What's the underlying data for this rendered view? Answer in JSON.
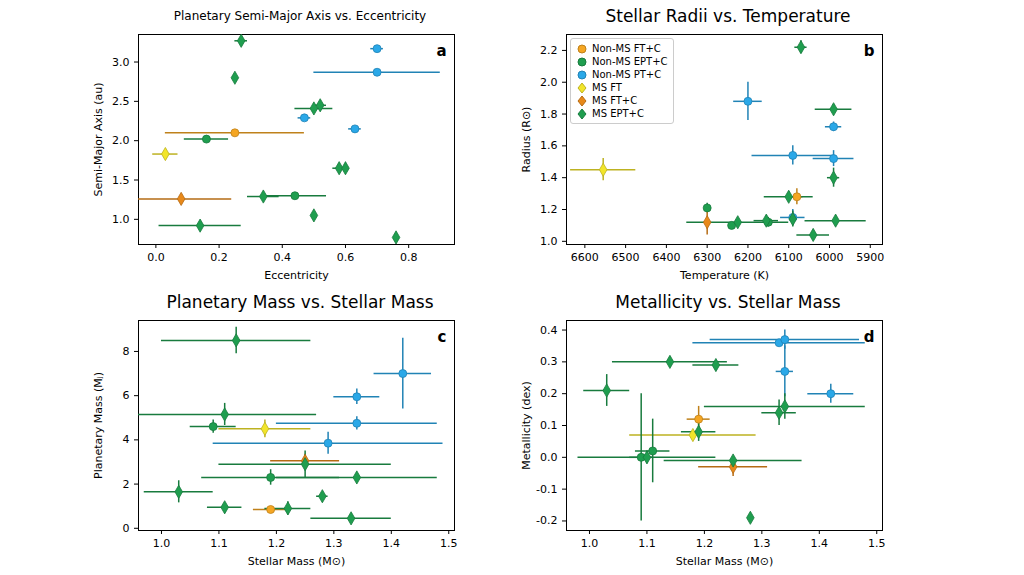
{
  "chart_data": [
    {
      "type": "scatter",
      "title": "Planetary Semi-Major Axis vs. Eccentricity",
      "x_label": "Eccentricity",
      "y_label": "Semi-Major Axis (au)",
      "annotations": [
        "a"
      ],
      "xlim": [
        -0.055,
        0.945
      ],
      "xticks": [
        {
          "value": 0,
          "label": "0.0"
        },
        {
          "value": 0.2,
          "label": "0.2"
        },
        {
          "value": 0.4,
          "label": "0.4"
        },
        {
          "value": 0.6,
          "label": "0.6"
        },
        {
          "value": 0.8,
          "label": "0.8"
        }
      ],
      "ylim": [
        0.68,
        3.35
      ],
      "yticks": [
        {
          "value": 1,
          "label": "1.0"
        },
        {
          "value": 1.5,
          "label": "1.5"
        },
        {
          "value": 2,
          "label": "2.0"
        },
        {
          "value": 2.5,
          "label": "2.5"
        },
        {
          "value": 3,
          "label": "3.0"
        }
      ],
      "series": [
        {
          "name": "Non-MS FT+C",
          "color": "#f5a623",
          "marker": "circle",
          "x": [
            0.25
          ],
          "y": [
            2.1
          ],
          "x_err": [
            0.22
          ],
          "y_err": [
            0
          ]
        },
        {
          "name": "Non-MS EPT+C",
          "color": "#1f9e4f",
          "marker": "circle",
          "x": [
            0.16,
            0.44
          ],
          "y": [
            2.02,
            1.3
          ],
          "x_err": [
            0.07,
            0.1
          ],
          "y_err": [
            0,
            0
          ]
        },
        {
          "name": "Non-MS PT+C",
          "color": "#2aa8e8",
          "marker": "circle",
          "x": [
            0.7,
            0.7,
            0.63,
            0.47
          ],
          "y": [
            3.17,
            2.87,
            2.15,
            2.29
          ],
          "x_err": [
            0.02,
            0.2,
            0.02,
            0.02
          ],
          "y_err": [
            0,
            0,
            0,
            0
          ]
        },
        {
          "name": "MS FT",
          "color": "#f2e52a",
          "marker": "diamond",
          "x": [
            0.03
          ],
          "y": [
            1.83
          ],
          "x_err": [
            0.04
          ],
          "y_err": [
            0
          ]
        },
        {
          "name": "MS FT+C",
          "color": "#e8891a",
          "marker": "diamond",
          "x": [
            0.08
          ],
          "y": [
            1.26
          ],
          "x_err": [
            0.16
          ],
          "y_err": [
            0
          ]
        },
        {
          "name": "MS EPT+C",
          "color": "#1f9e4f",
          "marker": "diamond",
          "x": [
            0.27,
            0.25,
            0.14,
            0.34,
            0.5,
            0.52,
            0.58,
            0.6,
            0.5,
            0.76
          ],
          "y": [
            3.27,
            2.8,
            0.92,
            1.29,
            2.41,
            2.45,
            1.65,
            1.65,
            1.05,
            0.77
          ],
          "x_err": [
            0.02,
            0,
            0.13,
            0.05,
            0.06,
            0.02,
            0.02,
            0,
            0,
            0
          ],
          "y_err": [
            0,
            0,
            0,
            0,
            0,
            0,
            0,
            0,
            0,
            0
          ]
        }
      ]
    },
    {
      "type": "scatter",
      "title": "Stellar Radii vs. Temperature",
      "x_label": "Temperature (K)",
      "y_label": "Radius (R⊙)",
      "annotations": [
        "b"
      ],
      "legend": "upper left",
      "xlim": [
        6645,
        5870
      ],
      "xticks": [
        6600,
        6500,
        6400,
        6300,
        6200,
        6100,
        6000,
        5900
      ],
      "ylim": [
        0.98,
        2.3
      ],
      "yticks": [
        {
          "value": 1,
          "label": "1.0"
        },
        {
          "value": 1.2,
          "label": "1.2"
        },
        {
          "value": 1.4,
          "label": "1.4"
        },
        {
          "value": 1.6,
          "label": "1.6"
        },
        {
          "value": 1.8,
          "label": "1.8"
        },
        {
          "value": 2,
          "label": "2.0"
        },
        {
          "value": 2.2,
          "label": "2.2"
        }
      ],
      "series": [
        {
          "name": "Non-MS FT+C",
          "color": "#f5a623",
          "marker": "circle",
          "x": [
            6080
          ],
          "y": [
            1.28
          ],
          "x_err": [
            15
          ],
          "y_err": [
            0.05
          ]
        },
        {
          "name": "Non-MS EPT+C",
          "color": "#1f9e4f",
          "marker": "circle",
          "x": [
            6300,
            6240,
            6150
          ],
          "y": [
            1.21,
            1.1,
            1.12
          ],
          "x_err": [
            0,
            0,
            0
          ],
          "y_err": [
            0.03,
            0,
            0.03
          ]
        },
        {
          "name": "Non-MS PT+C",
          "color": "#2aa8e8",
          "marker": "circle",
          "x": [
            6200,
            6090,
            5990,
            5990,
            6090
          ],
          "y": [
            1.88,
            1.54,
            1.52,
            1.72,
            1.15
          ],
          "x_err": [
            35,
            100,
            50,
            20,
            30
          ],
          "y_err": [
            0.12,
            0.06,
            0.05,
            0.03,
            0.05
          ]
        },
        {
          "name": "MS FT",
          "color": "#f2e52a",
          "marker": "diamond",
          "x": [
            6555
          ],
          "y": [
            1.45
          ],
          "x_err": [
            80
          ],
          "y_err": [
            0.07
          ]
        },
        {
          "name": "MS FT+C",
          "color": "#e8891a",
          "marker": "diamond",
          "x": [
            6300
          ],
          "y": [
            1.12
          ],
          "x_err": [
            0
          ],
          "y_err": [
            0.08
          ]
        },
        {
          "name": "MS EPT+C",
          "color": "#1f9e4f",
          "marker": "diamond",
          "x": [
            6070,
            5990,
            5990,
            6155,
            6100,
            6090,
            6040,
            5985,
            6225
          ],
          "y": [
            2.22,
            1.83,
            1.4,
            1.13,
            1.28,
            1.14,
            1.04,
            1.13,
            1.12
          ],
          "x_err": [
            15,
            45,
            15,
            30,
            60,
            0,
            40,
            75,
            125
          ],
          "y_err": [
            0.04,
            0.03,
            0.06,
            0.03,
            0.03,
            0.05,
            0,
            0.02,
            0
          ]
        }
      ]
    },
    {
      "type": "scatter",
      "title": "Planetary Mass vs. Stellar Mass",
      "x_label": "Stellar Mass (M⊙)",
      "y_label": "Planetary Mass (Mⱼ)",
      "annotations": [
        "c"
      ],
      "xlim": [
        0.96,
        1.51
      ],
      "xticks": [
        {
          "value": 1,
          "label": "1.0"
        },
        {
          "value": 1.1,
          "label": "1.1"
        },
        {
          "value": 1.2,
          "label": "1.2"
        },
        {
          "value": 1.3,
          "label": "1.3"
        },
        {
          "value": 1.4,
          "label": "1.4"
        },
        {
          "value": 1.5,
          "label": "1.5"
        }
      ],
      "ylim": [
        -0.1,
        9.4
      ],
      "yticks": [
        0,
        2,
        4,
        6,
        8
      ],
      "series": [
        {
          "name": "Non-MS FT+C",
          "color": "#f5a623",
          "marker": "circle",
          "x": [
            1.19
          ],
          "y": [
            0.85
          ],
          "x_err": [
            0.03
          ],
          "y_err": [
            0
          ]
        },
        {
          "name": "Non-MS EPT+C",
          "color": "#1f9e4f",
          "marker": "circle",
          "x": [
            1.09,
            1.19
          ],
          "y": [
            4.6,
            2.3
          ],
          "x_err": [
            0.04,
            0.12
          ],
          "y_err": [
            0.3,
            0.35
          ]
        },
        {
          "name": "Non-MS PT+C",
          "color": "#2aa8e8",
          "marker": "circle",
          "x": [
            1.42,
            1.34,
            1.34,
            1.29
          ],
          "y": [
            7.0,
            5.95,
            4.75,
            3.85
          ],
          "x_err": [
            0.05,
            0.04,
            0.14,
            0.2
          ],
          "y_err": [
            1.6,
            0.35,
            0.3,
            0.5
          ]
        },
        {
          "name": "MS FT",
          "color": "#f2e52a",
          "marker": "diamond",
          "x": [
            1.18
          ],
          "y": [
            4.5
          ],
          "x_err": [
            0.08
          ],
          "y_err": [
            0.4
          ]
        },
        {
          "name": "MS FT+C",
          "color": "#e8891a",
          "marker": "diamond",
          "x": [
            1.25
          ],
          "y": [
            3.05
          ],
          "x_err": [
            0.06
          ],
          "y_err": [
            0.3
          ]
        },
        {
          "name": "MS EPT+C",
          "color": "#1f9e4f",
          "marker": "diamond",
          "x": [
            1.13,
            1.11,
            1.34,
            1.03,
            1.11,
            1.22,
            1.28,
            1.33,
            1.25
          ],
          "y": [
            8.5,
            5.15,
            2.3,
            1.65,
            0.95,
            0.9,
            1.45,
            0.45,
            2.9
          ],
          "x_err": [
            0.13,
            0.16,
            0.14,
            0.06,
            0.03,
            0.04,
            0.01,
            0.07,
            0.15
          ],
          "y_err": [
            0.6,
            0.5,
            0.1,
            0.5,
            0,
            0.3,
            0.05,
            0,
            0.6
          ]
        }
      ]
    },
    {
      "type": "scatter",
      "title": "Metallicity vs. Stellar Mass",
      "x_label": "Stellar Mass (M⊙)",
      "y_label": "Metallicity (dex)",
      "annotations": [
        "d"
      ],
      "xlim": [
        0.96,
        1.51
      ],
      "xticks": [
        {
          "value": 1,
          "label": "1.0"
        },
        {
          "value": 1.1,
          "label": "1.1"
        },
        {
          "value": 1.2,
          "label": "1.2"
        },
        {
          "value": 1.3,
          "label": "1.3"
        },
        {
          "value": 1.4,
          "label": "1.4"
        },
        {
          "value": 1.5,
          "label": "1.5"
        }
      ],
      "ylim": [
        -0.23,
        0.43
      ],
      "yticks": [
        {
          "value": -0.2,
          "label": "-0.2"
        },
        {
          "value": -0.1,
          "label": "-0.1"
        },
        {
          "value": 0,
          "label": "0.0"
        },
        {
          "value": 0.1,
          "label": "0.1"
        },
        {
          "value": 0.2,
          "label": "0.2"
        },
        {
          "value": 0.3,
          "label": "0.3"
        },
        {
          "value": 0.4,
          "label": "0.4"
        }
      ],
      "series": [
        {
          "name": "Non-MS FT+C",
          "color": "#f5a623",
          "marker": "circle",
          "x": [
            1.19
          ],
          "y": [
            0.12
          ],
          "x_err": [
            0.02
          ],
          "y_err": [
            0.04
          ]
        },
        {
          "name": "Non-MS EPT+C",
          "color": "#1f9e4f",
          "marker": "circle",
          "x": [
            1.09,
            1.11
          ],
          "y": [
            0.0,
            0.02
          ],
          "x_err": [
            0.02,
            0.03
          ],
          "y_err": [
            0.2,
            0.1
          ]
        },
        {
          "name": "Non-MS PT+C",
          "color": "#2aa8e8",
          "marker": "circle",
          "x": [
            1.33,
            1.34,
            1.34,
            1.42
          ],
          "y": [
            0.36,
            0.37,
            0.27,
            0.2
          ],
          "x_err": [
            0.15,
            0.13,
            0.015,
            0.04
          ],
          "y_err": [
            0,
            0.03,
            0.08,
            0.03
          ]
        },
        {
          "name": "MS FT",
          "color": "#f2e52a",
          "marker": "diamond",
          "x": [
            1.18
          ],
          "y": [
            0.07
          ],
          "x_err": [
            0.11
          ],
          "y_err": [
            0
          ]
        },
        {
          "name": "MS FT+C",
          "color": "#e8891a",
          "marker": "diamond",
          "x": [
            1.25
          ],
          "y": [
            -0.03
          ],
          "x_err": [
            0.06
          ],
          "y_err": [
            0.03
          ]
        },
        {
          "name": "MS EPT+C",
          "color": "#1f9e4f",
          "marker": "diamond",
          "x": [
            1.03,
            1.14,
            1.22,
            1.34,
            1.33,
            1.19,
            1.1,
            1.25,
            1.28
          ],
          "y": [
            0.21,
            0.3,
            0.29,
            0.16,
            0.14,
            0.08,
            0.0,
            -0.01,
            -0.19
          ],
          "x_err": [
            0.04,
            0.1,
            0.04,
            0.14,
            0.03,
            0.03,
            0.12,
            0.12,
            0
          ],
          "y_err": [
            0.05,
            0.015,
            0.01,
            0.04,
            0.04,
            0.03,
            0.02,
            0.01,
            0
          ]
        }
      ]
    }
  ]
}
